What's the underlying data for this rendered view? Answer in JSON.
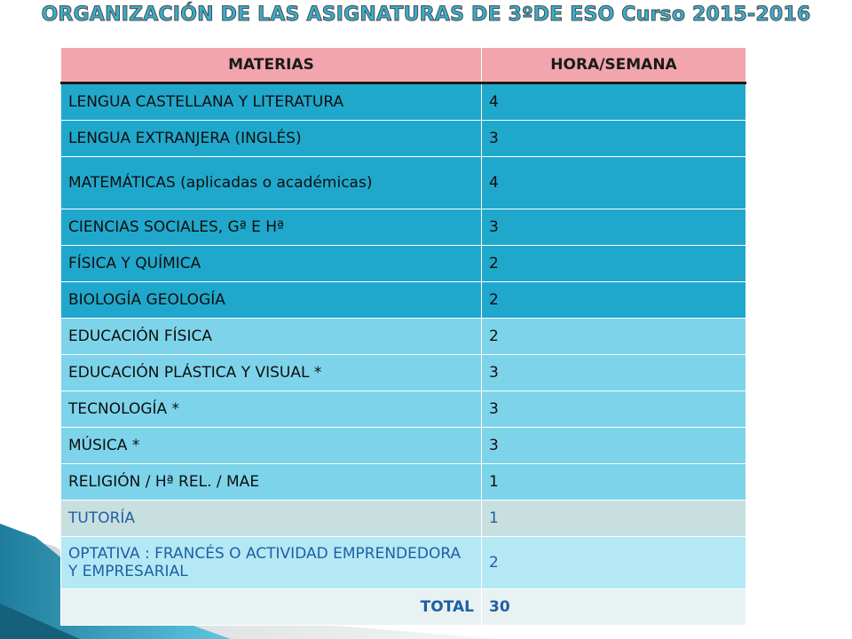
{
  "title": "ORGANIZACIÓN DE LAS ASIGNATURAS DE 3ºDE ESO Curso 2015-2016",
  "table": {
    "headers": {
      "subject": "MATERIAS",
      "hours": "HORA/SEMANA"
    },
    "rows": [
      {
        "subject": "LENGUA CASTELLANA Y LITERATURA",
        "hours": "4"
      },
      {
        "subject": "LENGUA EXTRANJERA (INGLÉS)",
        "hours": "3"
      },
      {
        "subject": "MATEMÁTICAS (aplicadas o académicas)",
        "hours": "4"
      },
      {
        "subject": "CIENCIAS SOCIALES, Gª E Hª",
        "hours": "3"
      },
      {
        "subject": "FÍSICA Y QUÍMICA",
        "hours": "2"
      },
      {
        "subject": "BIOLOGÍA GEOLOGÍA",
        "hours": "2"
      },
      {
        "subject": "EDUCACIÓN FÍSICA",
        "hours": "2"
      },
      {
        "subject": "EDUCACIÓN PLÁSTICA Y VISUAL *",
        "hours": "3"
      },
      {
        "subject": "TECNOLOGÍA *",
        "hours": "3"
      },
      {
        "subject": "MÚSICA *",
        "hours": "3"
      },
      {
        "subject": "RELIGIÓN / Hª REL. / MAE",
        "hours": "1"
      },
      {
        "subject": "TUTORÍA",
        "hours": "1"
      },
      {
        "subject": "OPTATIVA : FRANCÉS O ACTIVIDAD EMPRENDEDORA Y EMPRESARIAL",
        "hours": "2"
      }
    ],
    "total": {
      "label": "TOTAL",
      "value": "30"
    }
  },
  "colors": {
    "header_bg": "#f2a5ad",
    "row_dark": "#20a8cc",
    "row_light": "#7dd4ea",
    "row_grey": "#c8dfe0",
    "row_pale": "#b4e8f4",
    "title_fill": "#36b0cf"
  }
}
